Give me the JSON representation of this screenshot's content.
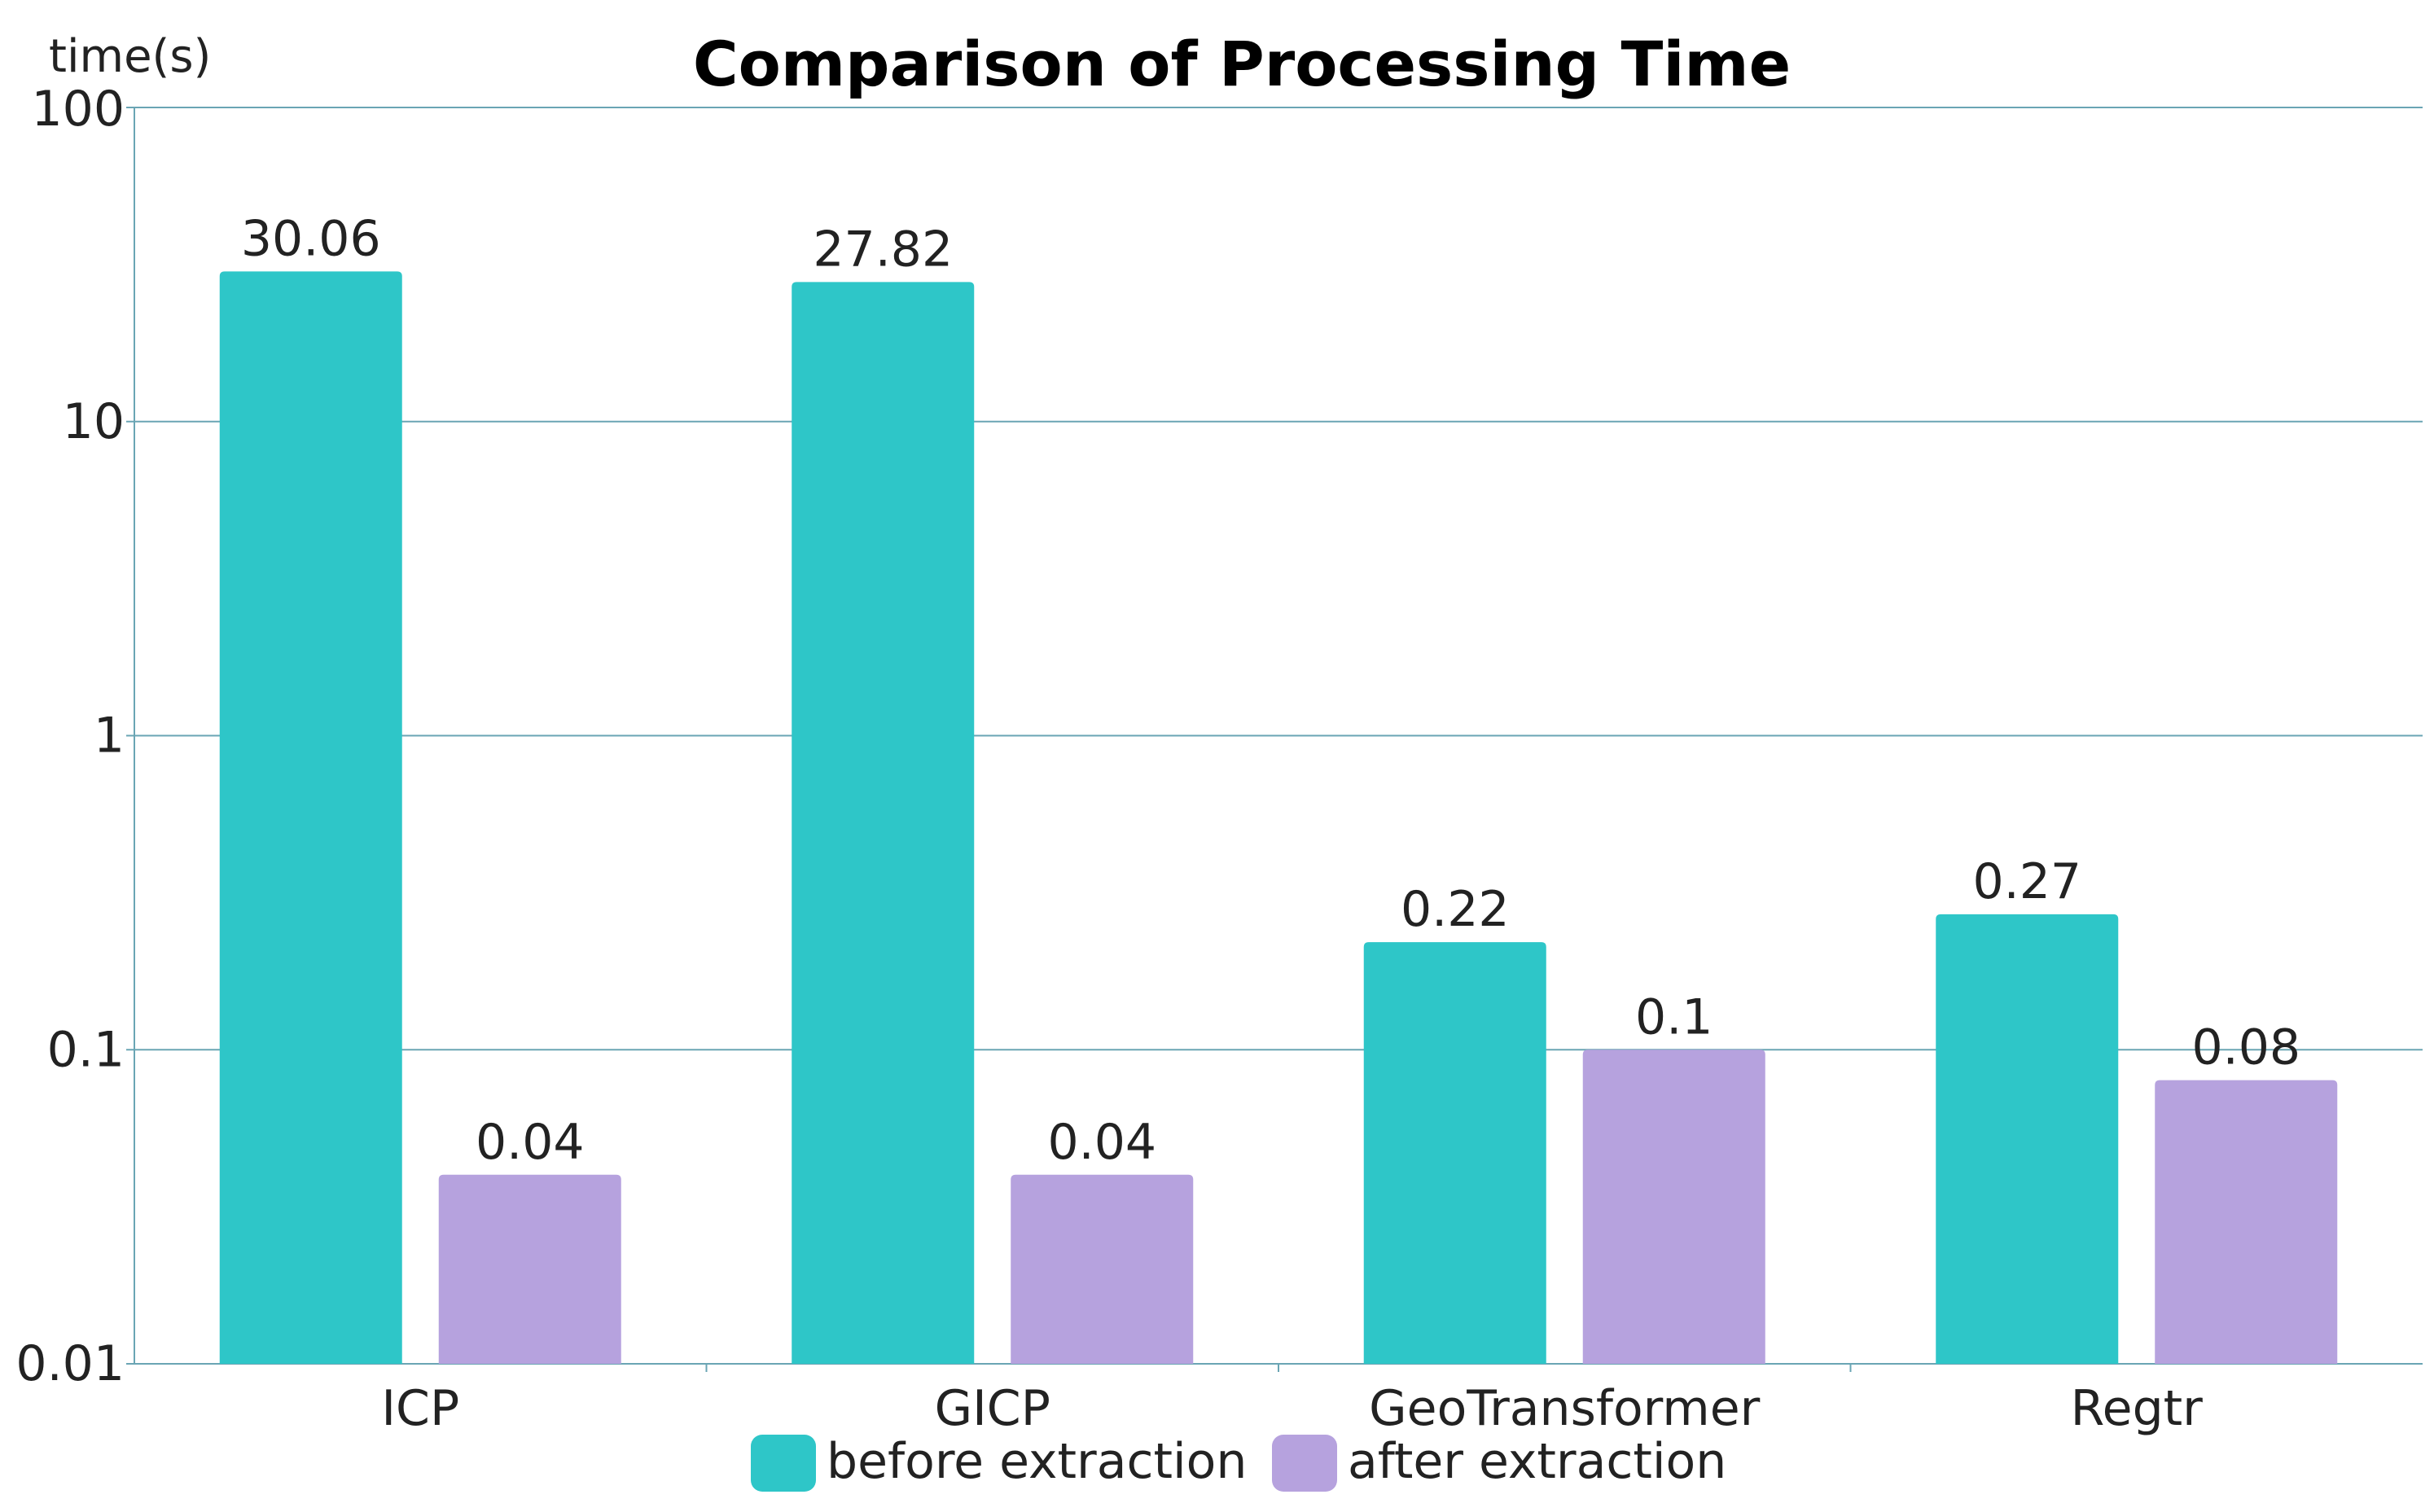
{
  "chart_data": {
    "type": "bar",
    "title": "Comparison of Processing Time",
    "ylabel": "time(s)",
    "xlabel": "",
    "yscale": "log",
    "ylim": [
      0.01,
      100
    ],
    "yticks": [
      0.01,
      0.1,
      1,
      10,
      100
    ],
    "ytick_labels": [
      "0.01",
      "0.1",
      "1",
      "10",
      "100"
    ],
    "categories": [
      "ICP",
      "GICP",
      "GeoTransformer",
      "Regtr"
    ],
    "series": [
      {
        "name": "before extraction",
        "color": "#2ec6c8",
        "values": [
          30.06,
          27.82,
          0.22,
          0.27
        ],
        "labels": [
          "30.06",
          "27.82",
          "0.22",
          "0.27"
        ]
      },
      {
        "name": "after extraction",
        "color": "#b6a2de",
        "values": [
          0.04,
          0.04,
          0.1,
          0.08
        ],
        "labels": [
          "0.04",
          "0.04",
          "0.1",
          "0.08"
        ]
      }
    ],
    "grid": true,
    "grid_color": "#6aa5b4",
    "legend_position": "bottom-center"
  }
}
